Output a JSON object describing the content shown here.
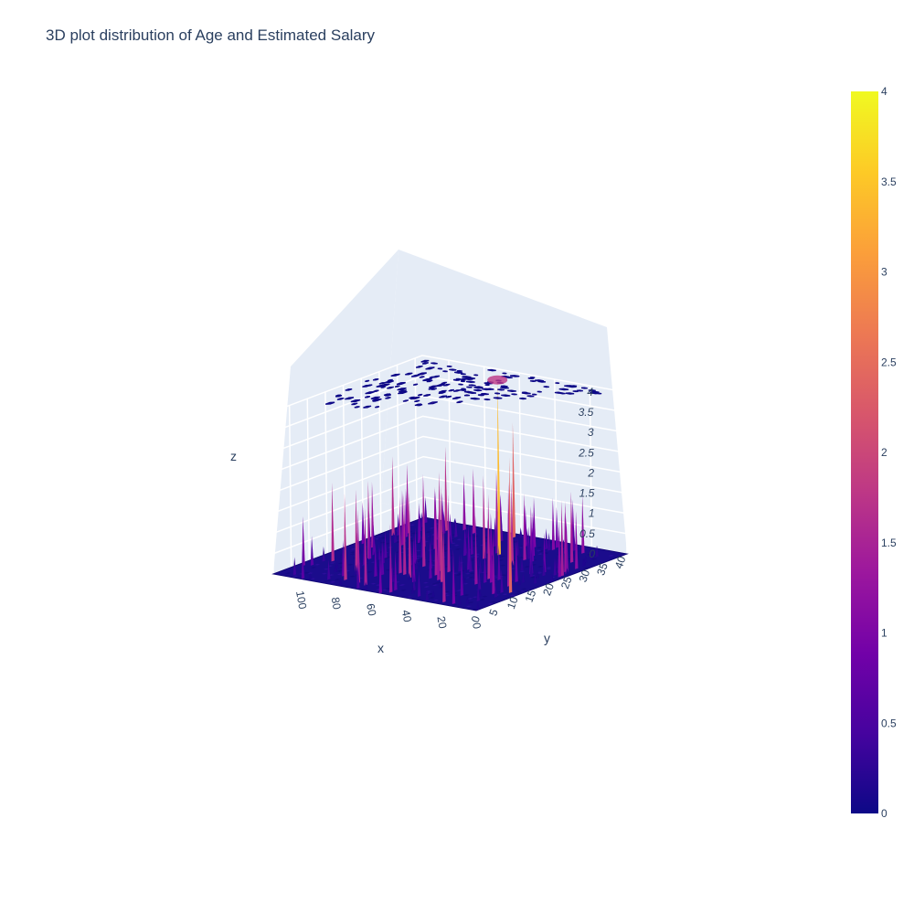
{
  "chart_data": {
    "type": "surface",
    "title": "3D plot distribution of Age and Estimated Salary",
    "xlabel": "x",
    "ylabel": "y",
    "zlabel": "z",
    "x_ticks": [
      "0",
      "20",
      "40",
      "60",
      "80",
      "100"
    ],
    "y_ticks": [
      "0",
      "5",
      "10",
      "15",
      "20",
      "25",
      "30",
      "35",
      "40"
    ],
    "z_ticks": [
      "0",
      "0.5",
      "1",
      "1.5",
      "2",
      "2.5",
      "3",
      "3.5",
      "4"
    ],
    "xlim": [
      0,
      115
    ],
    "ylim": [
      0,
      42
    ],
    "zlim": [
      0,
      4
    ],
    "colorbar": {
      "ticks": [
        "0",
        "0.5",
        "1",
        "1.5",
        "2",
        "2.5",
        "3",
        "3.5",
        "4"
      ],
      "range": [
        0,
        4
      ],
      "colorscale": [
        "#0d0887",
        "#46039f",
        "#7201a8",
        "#9c179e",
        "#bd3786",
        "#d8576b",
        "#ed7953",
        "#fb9f3a",
        "#fdca26",
        "#f0f921"
      ]
    },
    "contour_projection": "top",
    "notable_peaks": [
      {
        "x": 48,
        "y": 30,
        "z": 4
      },
      {
        "x": 60,
        "y": 40,
        "z": 2.8
      },
      {
        "x": 5,
        "y": 12,
        "z": 2.8
      }
    ]
  }
}
